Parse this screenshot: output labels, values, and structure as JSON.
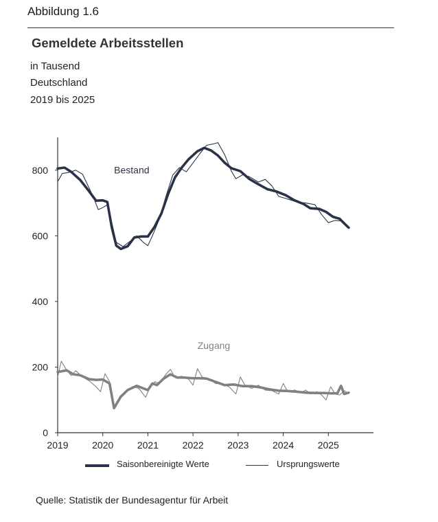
{
  "figure_label": "Abbildung 1.6",
  "title": "Gemeldete Arbeitsstellen",
  "subtitle_lines": [
    "in Tausend",
    "Deutschland",
    "2019 bis 2025"
  ],
  "source": "Quelle: Statistik der Bundesagentur für Arbeit",
  "colors": {
    "bestand": "#2a3248",
    "zugang": "#808080",
    "axis": "#333333"
  },
  "legend": {
    "seasonal": "Saisonbereinigte Werte",
    "original": "Ursprungswerte"
  },
  "chart_data": {
    "type": "line",
    "xlim": [
      2019,
      2026
    ],
    "ylim": [
      0,
      900
    ],
    "x_ticks": [
      2019,
      2020,
      2021,
      2022,
      2023,
      2024,
      2025
    ],
    "x_tick_labels": [
      "2019",
      "2020",
      "2021",
      "2022",
      "2023",
      "2024",
      "2025"
    ],
    "y_ticks": [
      0,
      200,
      400,
      600,
      800
    ],
    "y_tick_labels": [
      "0",
      "200",
      "400",
      "600",
      "800"
    ],
    "annotations": [
      {
        "text": "Bestand",
        "x": 2020.25,
        "y": 790
      },
      {
        "text": "Zugang",
        "x": 2022.1,
        "y": 255
      }
    ],
    "series": [
      {
        "group": "Bestand",
        "style": "seasonal",
        "points": [
          [
            2019.0,
            805
          ],
          [
            2019.15,
            808
          ],
          [
            2019.3,
            795
          ],
          [
            2019.5,
            770
          ],
          [
            2019.7,
            735
          ],
          [
            2019.85,
            707
          ],
          [
            2020.0,
            708
          ],
          [
            2020.1,
            703
          ],
          [
            2020.2,
            625
          ],
          [
            2020.3,
            570
          ],
          [
            2020.4,
            560
          ],
          [
            2020.55,
            568
          ],
          [
            2020.7,
            595
          ],
          [
            2020.85,
            598
          ],
          [
            2021.0,
            598
          ],
          [
            2021.15,
            628
          ],
          [
            2021.3,
            668
          ],
          [
            2021.45,
            728
          ],
          [
            2021.6,
            778
          ],
          [
            2021.75,
            808
          ],
          [
            2021.9,
            833
          ],
          [
            2022.1,
            858
          ],
          [
            2022.25,
            868
          ],
          [
            2022.4,
            860
          ],
          [
            2022.55,
            845
          ],
          [
            2022.7,
            823
          ],
          [
            2022.85,
            806
          ],
          [
            2023.05,
            797
          ],
          [
            2023.25,
            773
          ],
          [
            2023.45,
            757
          ],
          [
            2023.65,
            742
          ],
          [
            2023.85,
            735
          ],
          [
            2024.05,
            724
          ],
          [
            2024.25,
            708
          ],
          [
            2024.45,
            697
          ],
          [
            2024.6,
            684
          ],
          [
            2024.8,
            682
          ],
          [
            2024.95,
            673
          ],
          [
            2025.1,
            658
          ],
          [
            2025.25,
            652
          ],
          [
            2025.35,
            638
          ],
          [
            2025.45,
            625
          ]
        ]
      },
      {
        "group": "Bestand",
        "style": "original",
        "points": [
          [
            2019.0,
            765
          ],
          [
            2019.1,
            790
          ],
          [
            2019.25,
            793
          ],
          [
            2019.4,
            800
          ],
          [
            2019.55,
            788
          ],
          [
            2019.7,
            745
          ],
          [
            2019.8,
            715
          ],
          [
            2019.9,
            680
          ],
          [
            2020.0,
            686
          ],
          [
            2020.1,
            694
          ],
          [
            2020.2,
            640
          ],
          [
            2020.3,
            580
          ],
          [
            2020.45,
            567
          ],
          [
            2020.6,
            583
          ],
          [
            2020.75,
            600
          ],
          [
            2020.9,
            580
          ],
          [
            2021.0,
            570
          ],
          [
            2021.1,
            600
          ],
          [
            2021.25,
            650
          ],
          [
            2021.4,
            720
          ],
          [
            2021.55,
            785
          ],
          [
            2021.7,
            808
          ],
          [
            2021.85,
            795
          ],
          [
            2022.0,
            822
          ],
          [
            2022.15,
            850
          ],
          [
            2022.3,
            876
          ],
          [
            2022.45,
            880
          ],
          [
            2022.55,
            884
          ],
          [
            2022.7,
            848
          ],
          [
            2022.85,
            797
          ],
          [
            2022.95,
            774
          ],
          [
            2023.1,
            786
          ],
          [
            2023.25,
            780
          ],
          [
            2023.45,
            764
          ],
          [
            2023.6,
            772
          ],
          [
            2023.75,
            752
          ],
          [
            2023.9,
            720
          ],
          [
            2024.0,
            716
          ],
          [
            2024.15,
            710
          ],
          [
            2024.3,
            703
          ],
          [
            2024.5,
            700
          ],
          [
            2024.7,
            695
          ],
          [
            2024.85,
            665
          ],
          [
            2025.0,
            640
          ],
          [
            2025.15,
            647
          ],
          [
            2025.3,
            645
          ],
          [
            2025.45,
            625
          ]
        ]
      },
      {
        "group": "Zugang",
        "style": "seasonal",
        "points": [
          [
            2019.0,
            185
          ],
          [
            2019.2,
            190
          ],
          [
            2019.35,
            178
          ],
          [
            2019.5,
            175
          ],
          [
            2019.7,
            163
          ],
          [
            2019.85,
            161
          ],
          [
            2020.0,
            162
          ],
          [
            2020.15,
            150
          ],
          [
            2020.25,
            75
          ],
          [
            2020.4,
            110
          ],
          [
            2020.55,
            130
          ],
          [
            2020.75,
            143
          ],
          [
            2020.9,
            135
          ],
          [
            2021.0,
            130
          ],
          [
            2021.1,
            150
          ],
          [
            2021.2,
            145
          ],
          [
            2021.35,
            165
          ],
          [
            2021.5,
            178
          ],
          [
            2021.65,
            168
          ],
          [
            2021.8,
            168
          ],
          [
            2022.0,
            166
          ],
          [
            2022.15,
            166
          ],
          [
            2022.3,
            165
          ],
          [
            2022.5,
            155
          ],
          [
            2022.7,
            145
          ],
          [
            2022.9,
            147
          ],
          [
            2023.1,
            142
          ],
          [
            2023.3,
            142
          ],
          [
            2023.5,
            138
          ],
          [
            2023.7,
            132
          ],
          [
            2023.9,
            128
          ],
          [
            2024.1,
            127
          ],
          [
            2024.3,
            125
          ],
          [
            2024.5,
            122
          ],
          [
            2024.7,
            121
          ],
          [
            2024.9,
            121
          ],
          [
            2025.05,
            120
          ],
          [
            2025.2,
            120
          ],
          [
            2025.28,
            143
          ],
          [
            2025.35,
            118
          ],
          [
            2025.45,
            122
          ]
        ]
      },
      {
        "group": "Zugang",
        "style": "original",
        "points": [
          [
            2019.0,
            170
          ],
          [
            2019.08,
            218
          ],
          [
            2019.18,
            195
          ],
          [
            2019.3,
            174
          ],
          [
            2019.4,
            189
          ],
          [
            2019.55,
            170
          ],
          [
            2019.7,
            158
          ],
          [
            2019.85,
            140
          ],
          [
            2019.95,
            125
          ],
          [
            2020.05,
            180
          ],
          [
            2020.15,
            155
          ],
          [
            2020.25,
            80
          ],
          [
            2020.35,
            100
          ],
          [
            2020.5,
            120
          ],
          [
            2020.65,
            140
          ],
          [
            2020.8,
            135
          ],
          [
            2020.95,
            108
          ],
          [
            2021.05,
            140
          ],
          [
            2021.15,
            155
          ],
          [
            2021.25,
            150
          ],
          [
            2021.4,
            178
          ],
          [
            2021.5,
            193
          ],
          [
            2021.6,
            168
          ],
          [
            2021.75,
            172
          ],
          [
            2021.9,
            163
          ],
          [
            2022.0,
            145
          ],
          [
            2022.1,
            195
          ],
          [
            2022.2,
            170
          ],
          [
            2022.35,
            165
          ],
          [
            2022.5,
            150
          ],
          [
            2022.65,
            148
          ],
          [
            2022.8,
            140
          ],
          [
            2022.95,
            118
          ],
          [
            2023.05,
            170
          ],
          [
            2023.15,
            145
          ],
          [
            2023.3,
            135
          ],
          [
            2023.45,
            145
          ],
          [
            2023.6,
            130
          ],
          [
            2023.75,
            128
          ],
          [
            2023.9,
            118
          ],
          [
            2024.0,
            150
          ],
          [
            2024.1,
            125
          ],
          [
            2024.25,
            130
          ],
          [
            2024.4,
            122
          ],
          [
            2024.5,
            130
          ],
          [
            2024.6,
            118
          ],
          [
            2024.75,
            125
          ],
          [
            2024.85,
            115
          ],
          [
            2024.95,
            100
          ],
          [
            2025.05,
            140
          ],
          [
            2025.15,
            118
          ],
          [
            2025.25,
            115
          ],
          [
            2025.35,
            128
          ],
          [
            2025.45,
            120
          ]
        ]
      }
    ]
  }
}
